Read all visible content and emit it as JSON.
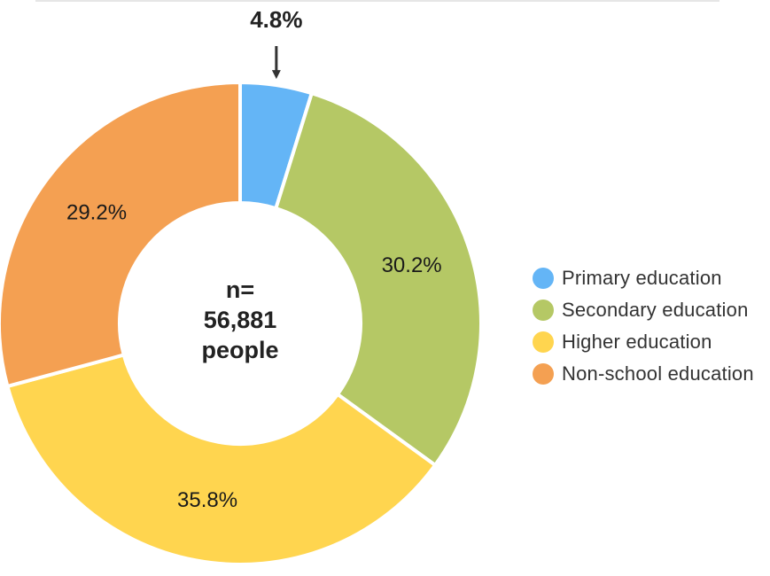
{
  "chart_data": {
    "type": "pie",
    "variant": "donut",
    "categories": [
      "Primary education",
      "Secondary education",
      "Higher education",
      "Non-school education"
    ],
    "values": [
      4.8,
      30.2,
      35.8,
      29.2
    ],
    "data_labels": [
      "4.8%",
      "30.2%",
      "35.8%",
      "29.2%"
    ],
    "colors": [
      "#64B5F6",
      "#B5C865",
      "#FFD54F",
      "#F4A052"
    ],
    "center_text": [
      "n=",
      "56,881",
      "people"
    ],
    "legend_placement": "right"
  }
}
